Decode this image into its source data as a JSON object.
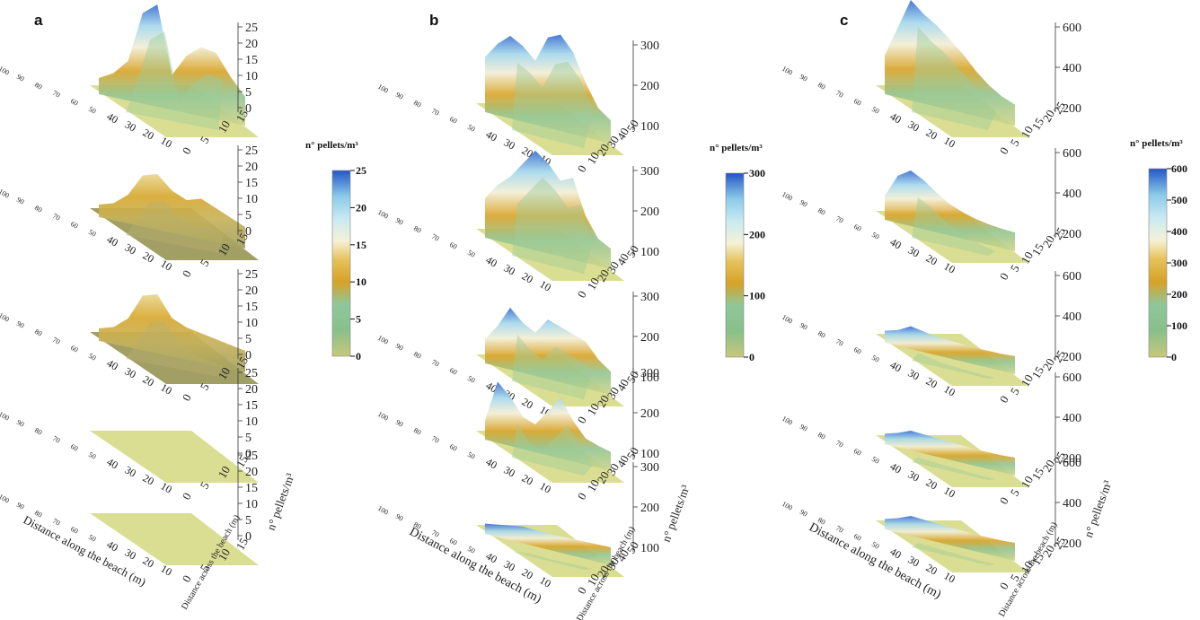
{
  "panels": [
    {
      "letter": "a",
      "colorbar": {
        "title": "n° pellets/m³",
        "ticks": [
          "0",
          "5",
          "10",
          "15",
          "20",
          "25"
        ]
      },
      "z_ticks": [
        "0",
        "5",
        "10",
        "15",
        "20",
        "25"
      ],
      "x_ticks": [
        "10",
        "20",
        "30",
        "40",
        "50",
        "60",
        "70",
        "80",
        "90",
        "100"
      ],
      "y_ticks": [
        "0",
        "5",
        "10",
        "15"
      ],
      "xlabel": "Distance along the beach (m)",
      "ylabel": "Distance across the beach (m)",
      "zlabel": "n° pellets/m³"
    },
    {
      "letter": "b",
      "colorbar": {
        "title": "n° pellets/m³",
        "ticks": [
          "0",
          "100",
          "200",
          "300"
        ]
      },
      "z_ticks": [
        "100",
        "200",
        "300"
      ],
      "x_ticks": [
        "10",
        "20",
        "30",
        "40",
        "50",
        "60",
        "70",
        "80",
        "90",
        "100"
      ],
      "y_ticks": [
        "0",
        "10",
        "20",
        "30",
        "40",
        "50"
      ],
      "xlabel": "Distance along the beach (m)",
      "ylabel": "Distance across the beach (m)",
      "zlabel": "n° pellets/m³"
    },
    {
      "letter": "c",
      "colorbar": {
        "title": "n° pellets/m³",
        "ticks": [
          "0",
          "100",
          "200",
          "300",
          "400",
          "500",
          "600"
        ]
      },
      "z_ticks": [
        "200",
        "400",
        "600"
      ],
      "x_ticks": [
        "10",
        "20",
        "30",
        "40",
        "50",
        "60",
        "70",
        "80",
        "90",
        "100"
      ],
      "y_ticks": [
        "0",
        "5",
        "10",
        "15",
        "20",
        "25"
      ],
      "xlabel": "Distance along the beach (m)",
      "ylabel": "Distance across the beach (m)",
      "zlabel": "n° pellets/m³"
    }
  ],
  "chart_data": [
    {
      "type": "surface",
      "panel": "a",
      "zlim": [
        0,
        25
      ],
      "surfaces": [
        {
          "peak": 25,
          "profile": [
            2,
            4,
            8,
            22,
            25,
            6,
            12,
            15,
            14,
            8,
            3
          ]
        },
        {
          "peak": 12,
          "profile": [
            1,
            2,
            5,
            11,
            12,
            8,
            6,
            7,
            5,
            3,
            1
          ]
        },
        {
          "peak": 13,
          "profile": [
            1,
            2,
            5,
            12,
            13,
            7,
            5,
            4,
            3,
            2,
            1
          ]
        },
        {
          "peak": 0,
          "profile": [
            0,
            0,
            0,
            0,
            0,
            0,
            0,
            0,
            0,
            0,
            0
          ]
        },
        {
          "peak": 0,
          "profile": [
            0,
            0,
            0,
            0,
            0,
            0,
            0,
            0,
            0,
            0,
            0
          ]
        }
      ]
    },
    {
      "type": "surface",
      "panel": "b",
      "zlim": [
        0,
        350
      ],
      "surfaces": [
        {
          "peak": 320,
          "profile": [
            180,
            240,
            280,
            250,
            200,
            300,
            320,
            260,
            150,
            60,
            20
          ]
        },
        {
          "peak": 340,
          "profile": [
            120,
            180,
            220,
            280,
            340,
            300,
            240,
            260,
            120,
            40,
            10
          ]
        },
        {
          "peak": 200,
          "profile": [
            60,
            120,
            200,
            150,
            120,
            180,
            160,
            140,
            120,
            60,
            20
          ]
        },
        {
          "peak": 200,
          "profile": [
            40,
            200,
            150,
            80,
            60,
            120,
            180,
            100,
            40,
            20,
            5
          ]
        },
        {
          "peak": 20,
          "profile": [
            5,
            10,
            15,
            20,
            15,
            10,
            8,
            6,
            4,
            2,
            0
          ]
        }
      ]
    },
    {
      "type": "surface",
      "panel": "c",
      "zlim": [
        0,
        600
      ],
      "surfaces": [
        {
          "peak": 600,
          "profile": [
            200,
            400,
            600,
            520,
            460,
            380,
            300,
            200,
            120,
            60,
            20
          ]
        },
        {
          "peak": 300,
          "profile": [
            100,
            250,
            300,
            250,
            180,
            120,
            80,
            50,
            30,
            15,
            5
          ]
        },
        {
          "peak": 80,
          "profile": [
            20,
            40,
            80,
            60,
            40,
            30,
            20,
            10,
            5,
            0,
            0
          ]
        },
        {
          "peak": 60,
          "profile": [
            10,
            30,
            60,
            50,
            40,
            30,
            20,
            10,
            5,
            0,
            0
          ]
        },
        {
          "peak": 60,
          "profile": [
            10,
            30,
            60,
            50,
            40,
            30,
            20,
            10,
            5,
            0,
            0
          ]
        }
      ]
    }
  ],
  "colors": {
    "flat": "#d8dc8c",
    "flat_dark": "#9c9a5c",
    "low": "#8fbf8a",
    "mid": "#d4a62a",
    "cream": "#f2efd8",
    "cyan": "#a9dcea",
    "high": "#2a5fc8"
  }
}
